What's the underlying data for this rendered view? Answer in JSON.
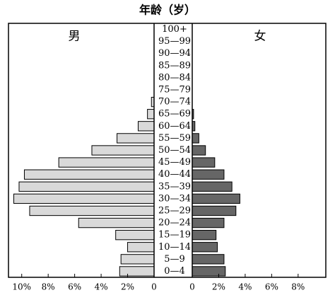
{
  "chart_data": {
    "type": "population-pyramid",
    "title": "年龄（岁）",
    "categories": [
      "0—4",
      "5—9",
      "10—14",
      "15—19",
      "20—24",
      "25—29",
      "30—34",
      "35—39",
      "40—44",
      "45—49",
      "50—54",
      "55—59",
      "60—64",
      "65—69",
      "70—74",
      "75—79",
      "80—84",
      "85—89",
      "90—94",
      "95—99",
      "100+"
    ],
    "series": [
      {
        "name": "男",
        "color": "#d9d9d9",
        "side": "left",
        "values": [
          2.6,
          2.5,
          2.0,
          2.9,
          5.7,
          9.4,
          10.6,
          10.2,
          9.8,
          7.2,
          4.7,
          2.8,
          1.2,
          0.5,
          0.2,
          0,
          0,
          0,
          0,
          0,
          0
        ]
      },
      {
        "name": "女",
        "color": "#666666",
        "side": "right",
        "values": [
          2.5,
          2.4,
          1.9,
          1.8,
          2.4,
          3.3,
          3.6,
          3.0,
          2.4,
          1.7,
          1.0,
          0.5,
          0.2,
          0.1,
          0,
          0,
          0,
          0,
          0,
          0,
          0
        ]
      }
    ],
    "xlim": [
      0,
      11
    ],
    "xticks": [
      {
        "value": 10,
        "label": "10%"
      },
      {
        "value": 8,
        "label": "8%"
      },
      {
        "value": 6,
        "label": "6%"
      },
      {
        "value": 4,
        "label": "4%"
      },
      {
        "value": 2,
        "label": "2%"
      },
      0
    ],
    "x2ticks": [
      0,
      {
        "value": 2,
        "label": "2%"
      },
      {
        "value": 4,
        "label": "4%"
      },
      {
        "value": 6,
        "label": "6%"
      },
      {
        "value": 8,
        "label": "8%"
      }
    ]
  }
}
